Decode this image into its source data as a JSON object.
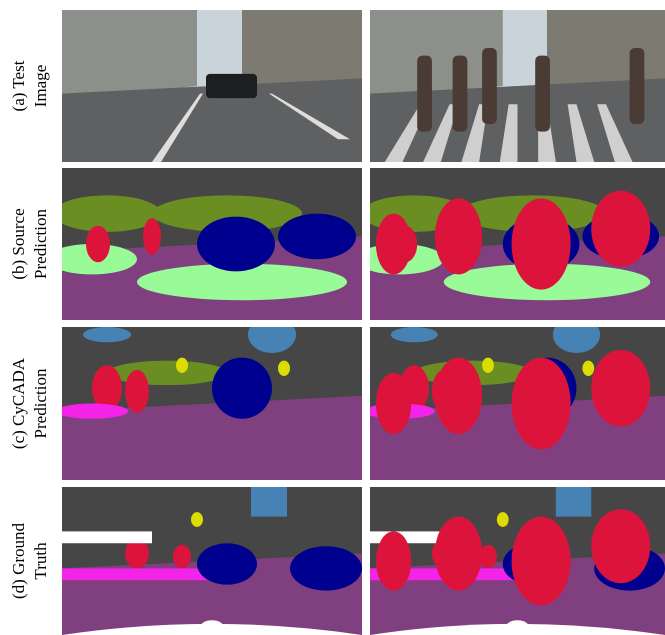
{
  "rows": [
    {
      "label_lines": [
        "(a) Test",
        "Image"
      ]
    },
    {
      "label_lines": [
        "(b) Source",
        "Prediction"
      ]
    },
    {
      "label_lines": [
        "(c) CyCADA",
        "Prediction"
      ]
    },
    {
      "label_lines": [
        "(d) Ground",
        "Truth"
      ]
    }
  ]
}
